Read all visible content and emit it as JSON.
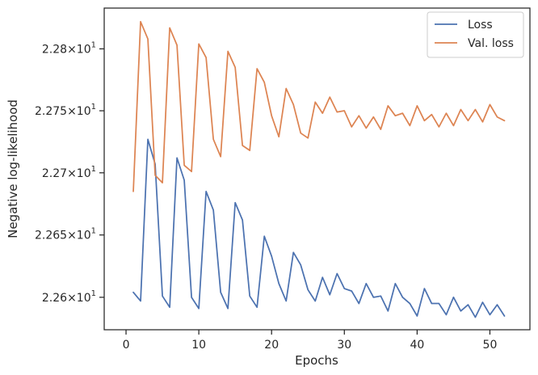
{
  "chart_data": {
    "type": "line",
    "xlabel": "Epochs",
    "ylabel": "Negative log-likelihood",
    "y_scale": "log",
    "xlim": [
      -3,
      55.5
    ],
    "ylim": [
      22.574,
      22.833
    ],
    "x_ticks": [
      {
        "value": 0,
        "label": "0"
      },
      {
        "value": 10,
        "label": "10"
      },
      {
        "value": 20,
        "label": "20"
      },
      {
        "value": 30,
        "label": "30"
      },
      {
        "value": 40,
        "label": "40"
      },
      {
        "value": 50,
        "label": "50"
      }
    ],
    "y_ticks": [
      {
        "value": 22.6,
        "mantissa": "2.26",
        "base": "10",
        "exp": "1"
      },
      {
        "value": 22.65,
        "mantissa": "2.265",
        "base": "10",
        "exp": "1"
      },
      {
        "value": 22.7,
        "mantissa": "2.27",
        "base": "10",
        "exp": "1"
      },
      {
        "value": 22.75,
        "mantissa": "2.275",
        "base": "10",
        "exp": "1"
      },
      {
        "value": 22.8,
        "mantissa": "2.28",
        "base": "10",
        "exp": "1"
      }
    ],
    "legend_position": "top-right",
    "grid": false,
    "x": [
      1,
      2,
      3,
      4,
      5,
      6,
      7,
      8,
      9,
      10,
      11,
      12,
      13,
      14,
      15,
      16,
      17,
      18,
      19,
      20,
      21,
      22,
      23,
      24,
      25,
      26,
      27,
      28,
      29,
      30,
      31,
      32,
      33,
      34,
      35,
      36,
      37,
      38,
      39,
      40,
      41,
      42,
      43,
      44,
      45,
      46,
      47,
      48,
      49,
      50,
      51,
      52
    ],
    "series": [
      {
        "name": "Loss",
        "color": "#4c72b0",
        "values": [
          22.604,
          22.597,
          22.727,
          22.707,
          22.601,
          22.592,
          22.712,
          22.694,
          22.6,
          22.591,
          22.685,
          22.67,
          22.604,
          22.591,
          22.676,
          22.662,
          22.601,
          22.592,
          22.649,
          22.633,
          22.611,
          22.597,
          22.636,
          22.626,
          22.606,
          22.597,
          22.616,
          22.602,
          22.619,
          22.607,
          22.605,
          22.595,
          22.611,
          22.6,
          22.601,
          22.589,
          22.611,
          22.6,
          22.595,
          22.585,
          22.607,
          22.595,
          22.595,
          22.586,
          22.6,
          22.589,
          22.594,
          22.584,
          22.596,
          22.586,
          22.594,
          22.585
        ]
      },
      {
        "name": "Val. loss",
        "color": "#dd8452",
        "values": [
          22.685,
          22.822,
          22.808,
          22.698,
          22.692,
          22.817,
          22.803,
          22.706,
          22.701,
          22.804,
          22.793,
          22.727,
          22.713,
          22.798,
          22.785,
          22.722,
          22.718,
          22.784,
          22.773,
          22.746,
          22.729,
          22.768,
          22.755,
          22.732,
          22.728,
          22.757,
          22.748,
          22.761,
          22.749,
          22.75,
          22.737,
          22.746,
          22.736,
          22.745,
          22.735,
          22.754,
          22.746,
          22.748,
          22.738,
          22.754,
          22.742,
          22.747,
          22.737,
          22.748,
          22.738,
          22.751,
          22.742,
          22.751,
          22.741,
          22.755,
          22.745,
          22.742
        ]
      }
    ]
  }
}
